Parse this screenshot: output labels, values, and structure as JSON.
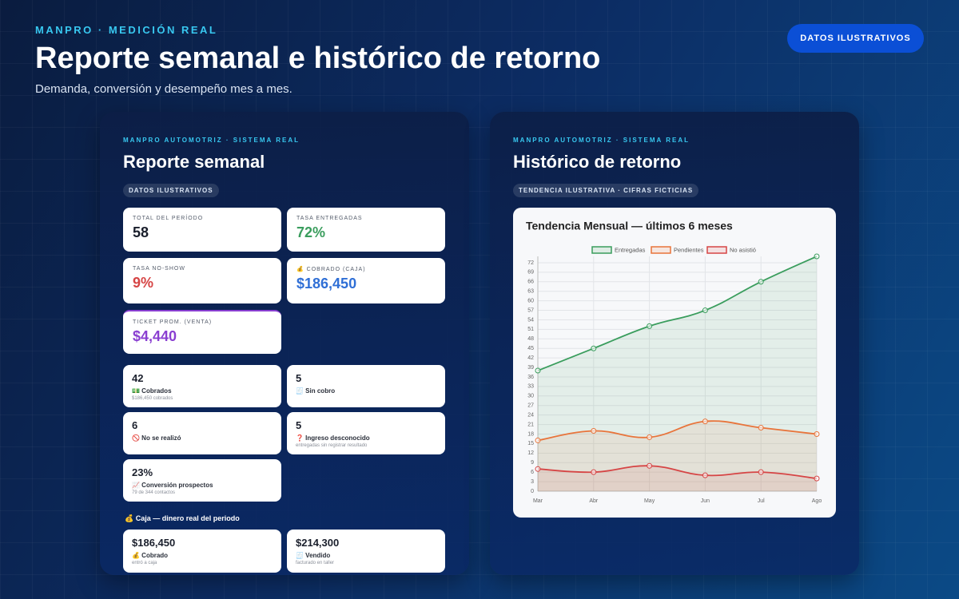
{
  "header": {
    "eyebrow": "MANPRO · MEDICIÓN REAL",
    "title": "Reporte semanal e histórico de retorno",
    "subtitle": "Demanda, conversión y desempeño mes a mes.",
    "badge": "DATOS ILUSTRATIVOS"
  },
  "report": {
    "eyebrow": "MANPRO AUTOMOTRIZ · SISTEMA REAL",
    "title": "Reporte semanal",
    "chip": "DATOS ILUSTRATIVOS",
    "kpis": [
      {
        "label": "TOTAL DEL PERÍODO",
        "value": "58"
      },
      {
        "label": "TASA ENTREGADAS",
        "value": "72%"
      },
      {
        "label": "TASA NO-SHOW",
        "value": "9%"
      },
      {
        "label": "💰 COBRADO (CAJA)",
        "value": "$186,450"
      },
      {
        "label": "TICKET PROM. (VENTA)",
        "value": "$4,440"
      }
    ],
    "stats": [
      {
        "value": "42",
        "label": "💵 Cobrados",
        "note": "$186,450 cobrados"
      },
      {
        "value": "5",
        "label": "🧾 Sin cobro"
      },
      {
        "value": "6",
        "label": "🚫 No se realizó"
      },
      {
        "value": "5",
        "label": "❓ Ingreso desconocido",
        "note": "entregadas sin registrar resultado"
      },
      {
        "value": "23%",
        "label": "📈 Conversión prospectos",
        "note": "79 de 344 contactos"
      }
    ],
    "cash_title": "💰 Caja — dinero real del periodo",
    "cash": [
      {
        "value": "$186,450",
        "label": "💰 Cobrado",
        "note": "entró a caja"
      },
      {
        "value": "$214,300",
        "label": "🧾 Vendido",
        "note": "facturado en taller"
      }
    ]
  },
  "history": {
    "eyebrow": "MANPRO AUTOMOTRIZ · SISTEMA REAL",
    "title": "Histórico de retorno",
    "chip": "TENDENCIA ILUSTRATIVA · CIFRAS FICTICIAS"
  },
  "chart_data": {
    "type": "line",
    "title": "Tendencia Mensual — últimos 6 meses",
    "categories": [
      "Mar",
      "Abr",
      "May",
      "Jun",
      "Jul",
      "Ago"
    ],
    "series": [
      {
        "name": "Entregadas",
        "color": "#3a9d5d",
        "values": [
          38,
          45,
          52,
          57,
          66,
          74
        ]
      },
      {
        "name": "Pendientes",
        "color": "#e8743b",
        "values": [
          16,
          19,
          17,
          22,
          20,
          18
        ]
      },
      {
        "name": "No asistió",
        "color": "#d64545",
        "values": [
          7,
          6,
          8,
          5,
          6,
          4
        ]
      }
    ],
    "ylim": [
      0,
      74
    ],
    "yticks": [
      0,
      3,
      6,
      9,
      12,
      15,
      18,
      21,
      24,
      27,
      30,
      33,
      36,
      39,
      42,
      45,
      48,
      51,
      54,
      57,
      60,
      63,
      66,
      69,
      72
    ],
    "grid": true,
    "fill": true,
    "legend": "top"
  }
}
